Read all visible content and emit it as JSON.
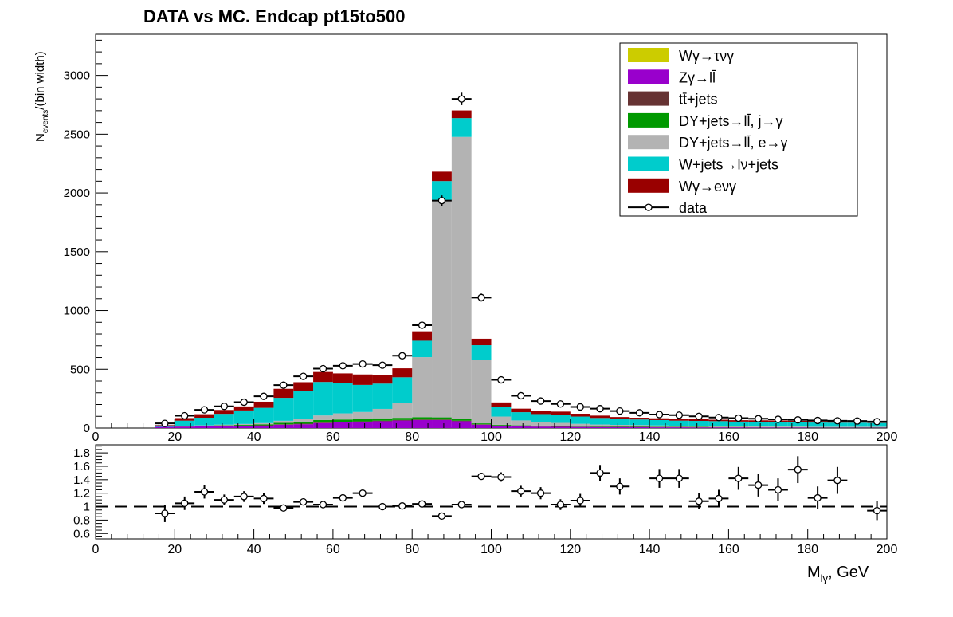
{
  "chart_data": [
    {
      "type": "bar",
      "stacked": true,
      "title": "DATA vs MC. Endcap  pt15to500",
      "ylabel": "N_events/(bin width)",
      "ylabel_main": "N",
      "ylabel_sub": "events",
      "ylabel_tail": "/(bin width)",
      "xlim": [
        0,
        200
      ],
      "ylim": [
        0,
        3350
      ],
      "x_ticks": [
        "0",
        "20",
        "40",
        "60",
        "80",
        "100",
        "120",
        "140",
        "160",
        "180",
        "200"
      ],
      "y_ticks": [
        {
          "v": 0,
          "label": "0"
        },
        {
          "v": 500,
          "label": "500"
        },
        {
          "v": 1000,
          "label": "1000"
        },
        {
          "v": 1500,
          "label": "1500"
        },
        {
          "v": 2000,
          "label": "2000"
        },
        {
          "v": 2500,
          "label": "2500"
        },
        {
          "v": 3000,
          "label": "3000"
        }
      ],
      "bin_lo": [
        15,
        20,
        25,
        30,
        35,
        40,
        45,
        50,
        55,
        60,
        65,
        70,
        75,
        80,
        85,
        90,
        95,
        100,
        105,
        110,
        115,
        120,
        125,
        130,
        135,
        140,
        145,
        150,
        155,
        160,
        165,
        170,
        175,
        180,
        185,
        190,
        195
      ],
      "bin_width": 5,
      "series": [
        {
          "name": "Zγ→ll̄",
          "color": "#9900cc",
          "values": [
            10,
            12,
            14,
            16,
            18,
            20,
            28,
            32,
            42,
            48,
            52,
            58,
            64,
            68,
            68,
            58,
            28,
            18,
            14,
            12,
            10,
            9,
            8,
            7,
            7,
            6,
            6,
            5,
            5,
            5,
            4,
            4,
            4,
            3,
            3,
            3,
            3
          ]
        },
        {
          "name": "tt̄+jets",
          "color": "#663333",
          "values": [
            0,
            2,
            2,
            3,
            3,
            4,
            4,
            5,
            5,
            5,
            5,
            5,
            5,
            5,
            5,
            5,
            4,
            4,
            4,
            4,
            4,
            3,
            3,
            3,
            3,
            3,
            3,
            2,
            2,
            2,
            2,
            2,
            2,
            2,
            2,
            2,
            2
          ]
        },
        {
          "name": "DY+jets→ll̄, j→γ",
          "color": "#009900",
          "values": [
            0,
            2,
            3,
            4,
            6,
            8,
            12,
            16,
            22,
            20,
            20,
            20,
            18,
            20,
            18,
            14,
            8,
            6,
            5,
            5,
            4,
            4,
            3,
            3,
            3,
            3,
            3,
            3,
            2,
            2,
            2,
            2,
            2,
            2,
            2,
            2,
            2
          ]
        },
        {
          "name": "DY+jets→ll̄, e→γ",
          "color": "#b3b3b3",
          "values": [
            0,
            2,
            4,
            6,
            8,
            10,
            18,
            22,
            38,
            52,
            60,
            80,
            130,
            510,
            1850,
            2400,
            540,
            70,
            42,
            30,
            26,
            20,
            16,
            14,
            12,
            10,
            8,
            8,
            7,
            6,
            6,
            5,
            5,
            4,
            4,
            4,
            4
          ]
        },
        {
          "name": "W+jets→lν+jets",
          "color": "#00cccc",
          "values": [
            12,
            45,
            65,
            92,
            115,
            130,
            195,
            240,
            285,
            255,
            230,
            215,
            215,
            140,
            160,
            160,
            125,
            80,
            70,
            68,
            66,
            62,
            56,
            50,
            48,
            46,
            43,
            43,
            43,
            40,
            40,
            40,
            37,
            36,
            35,
            35,
            33
          ]
        },
        {
          "name": "Wγ→eνγ",
          "color": "#990000",
          "values": [
            4,
            22,
            30,
            33,
            34,
            52,
            77,
            75,
            85,
            85,
            89,
            72,
            76,
            80,
            80,
            65,
            55,
            40,
            30,
            30,
            30,
            24,
            20,
            17,
            15,
            15,
            16,
            16,
            12,
            12,
            12,
            12,
            12,
            12,
            12,
            12,
            12
          ]
        },
        {
          "name": "Wγ→τνγ",
          "color": "#cccc00",
          "values": [
            0,
            0,
            0,
            0,
            0,
            0,
            0,
            0,
            0,
            0,
            0,
            0,
            0,
            0,
            0,
            0,
            0,
            0,
            0,
            0,
            0,
            0,
            0,
            0,
            0,
            0,
            0,
            0,
            0,
            0,
            0,
            0,
            0,
            0,
            0,
            0,
            0
          ]
        }
      ],
      "data": {
        "name": "data",
        "x": [
          17.5,
          22.5,
          27.5,
          32.5,
          37.5,
          42.5,
          47.5,
          52.5,
          57.5,
          62.5,
          67.5,
          72.5,
          77.5,
          82.5,
          87.5,
          92.5,
          97.5,
          102.5,
          107.5,
          112.5,
          117.5,
          122.5,
          127.5,
          132.5,
          137.5,
          142.5,
          147.5,
          152.5,
          157.5,
          162.5,
          167.5,
          172.5,
          177.5,
          182.5,
          187.5,
          192.5,
          197.5
        ],
        "y": [
          40,
          105,
          155,
          185,
          220,
          270,
          365,
          440,
          505,
          530,
          545,
          535,
          615,
          875,
          1935,
          2800,
          1110,
          410,
          275,
          230,
          205,
          180,
          165,
          145,
          130,
          115,
          110,
          100,
          90,
          85,
          80,
          75,
          70,
          65,
          62,
          60,
          55
        ],
        "xerr": 2.5
      },
      "legend": {
        "position": "top-right",
        "entries": [
          {
            "label": "Wγ→τνγ",
            "color": "#cccc00",
            "kind": "box"
          },
          {
            "label": "Zγ→ll̄",
            "color": "#9900cc",
            "kind": "box"
          },
          {
            "label": "tt̄+jets",
            "color": "#663333",
            "kind": "box"
          },
          {
            "label": "DY+jets→ll̄, j→γ",
            "color": "#009900",
            "kind": "box"
          },
          {
            "label": "DY+jets→ll̄, e→γ",
            "color": "#b3b3b3",
            "kind": "box"
          },
          {
            "label": "W+jets→lν+jets",
            "color": "#00cccc",
            "kind": "box"
          },
          {
            "label": "Wγ→eνγ",
            "color": "#990000",
            "kind": "box"
          },
          {
            "label": "data",
            "color": "#000000",
            "kind": "marker"
          }
        ]
      }
    },
    {
      "type": "scatter",
      "title": "",
      "xlabel": "M_lγ, GeV",
      "xlabel_main": "M",
      "xlabel_sub": "lγ",
      "xlabel_tail": ", GeV",
      "xlim": [
        0,
        200
      ],
      "ylim": [
        0.52,
        1.92
      ],
      "x_ticks": [
        "0",
        "20",
        "40",
        "60",
        "80",
        "100",
        "120",
        "140",
        "160",
        "180",
        "200"
      ],
      "y_ticks": [
        {
          "v": 0.6,
          "label": "0.6"
        },
        {
          "v": 0.8,
          "label": "0.8"
        },
        {
          "v": 1.0,
          "label": "1"
        },
        {
          "v": 1.2,
          "label": "1.2"
        },
        {
          "v": 1.4,
          "label": "1.4"
        },
        {
          "v": 1.6,
          "label": "1.6"
        },
        {
          "v": 1.8,
          "label": "1.8"
        }
      ],
      "reference_line": 1.0,
      "x": [
        17.5,
        22.5,
        27.5,
        32.5,
        37.5,
        42.5,
        47.5,
        52.5,
        57.5,
        62.5,
        67.5,
        72.5,
        77.5,
        82.5,
        87.5,
        92.5,
        97.5,
        102.5,
        107.5,
        112.5,
        117.5,
        122.5,
        127.5,
        132.5,
        137.5,
        142.5,
        147.5,
        152.5,
        157.5,
        162.5,
        167.5,
        172.5,
        177.5,
        182.5,
        187.5,
        197.5
      ],
      "y": [
        0.9,
        1.05,
        1.22,
        1.1,
        1.15,
        1.12,
        0.98,
        1.07,
        1.03,
        1.13,
        1.2,
        1.0,
        1.01,
        1.04,
        0.86,
        1.03,
        1.45,
        1.44,
        1.23,
        1.2,
        1.03,
        1.09,
        1.5,
        1.3,
        null,
        1.42,
        1.42,
        1.08,
        1.12,
        1.42,
        1.32,
        1.25,
        1.55,
        1.13,
        1.39,
        0.94
      ],
      "yerr": [
        0.13,
        0.1,
        0.1,
        0.08,
        0.08,
        0.08,
        0.04,
        0.05,
        0.04,
        0.04,
        0.04,
        0.03,
        0.03,
        0.02,
        0.02,
        0.02,
        0.03,
        0.07,
        0.08,
        0.09,
        0.08,
        0.1,
        0.12,
        0.12,
        null,
        0.14,
        0.14,
        0.12,
        0.13,
        0.17,
        0.17,
        0.17,
        0.2,
        0.17,
        0.2,
        0.14
      ],
      "xerr": 2.5
    }
  ]
}
